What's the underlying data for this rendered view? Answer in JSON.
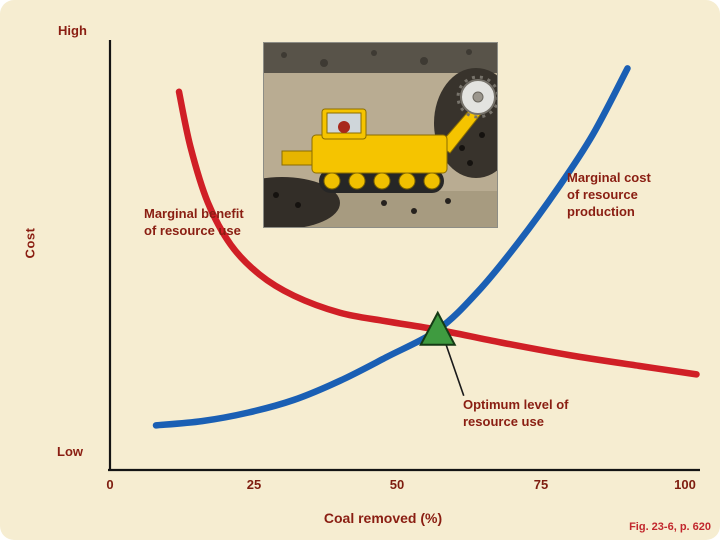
{
  "axis": {
    "high": "High",
    "low": "Low",
    "y_label": "Cost",
    "x_label": "Coal removed (%)",
    "x_ticks": [
      "0",
      "25",
      "50",
      "75",
      "100"
    ]
  },
  "labels": {
    "marginal_benefit": "Marginal benefit\nof resource use",
    "marginal_cost": "Marginal cost\nof resource\nproduction",
    "optimum": "Optimum level of\nresource use"
  },
  "caption": "Fig. 23-6, p. 620",
  "colors": {
    "background": "#f6edd1",
    "label_maroon": "#8a1e12",
    "benefit_curve_red": "#d01f26",
    "cost_curve_blue": "#1a5fb4",
    "marker_green": "#3f9b40",
    "caption_red": "#c1272d"
  },
  "chart_data": {
    "type": "line",
    "title": "",
    "xlabel": "Coal removed (%)",
    "ylabel": "Cost",
    "xlim": [
      0,
      100
    ],
    "ylim": [
      0,
      1
    ],
    "x_ticks": [
      0,
      25,
      50,
      75,
      100
    ],
    "y_axis_qualitative": [
      "Low",
      "High"
    ],
    "grid": false,
    "legend": "none (curves labeled inline)",
    "series": [
      {
        "id": "marginal-benefit",
        "name": "Marginal benefit of resource use",
        "color": "#d01f26",
        "points": [
          [
            12,
            0.89
          ],
          [
            14,
            0.76
          ],
          [
            17,
            0.63
          ],
          [
            21,
            0.53
          ],
          [
            26,
            0.46
          ],
          [
            32,
            0.41
          ],
          [
            40,
            0.37
          ],
          [
            48,
            0.35
          ],
          [
            57,
            0.33
          ],
          [
            68,
            0.3
          ],
          [
            80,
            0.27
          ],
          [
            92,
            0.245
          ],
          [
            102,
            0.225
          ]
        ]
      },
      {
        "id": "marginal-cost",
        "name": "Marginal cost of resource production",
        "color": "#1a5fb4",
        "points": [
          [
            8,
            0.105
          ],
          [
            16,
            0.115
          ],
          [
            24,
            0.135
          ],
          [
            32,
            0.165
          ],
          [
            40,
            0.21
          ],
          [
            48,
            0.265
          ],
          [
            57,
            0.33
          ],
          [
            64,
            0.42
          ],
          [
            71,
            0.535
          ],
          [
            78,
            0.665
          ],
          [
            84,
            0.79
          ],
          [
            90,
            0.945
          ]
        ]
      }
    ],
    "intersection": {
      "x": 57,
      "y": 0.33,
      "marker": "green-triangle",
      "label": "Optimum level of resource use"
    }
  }
}
